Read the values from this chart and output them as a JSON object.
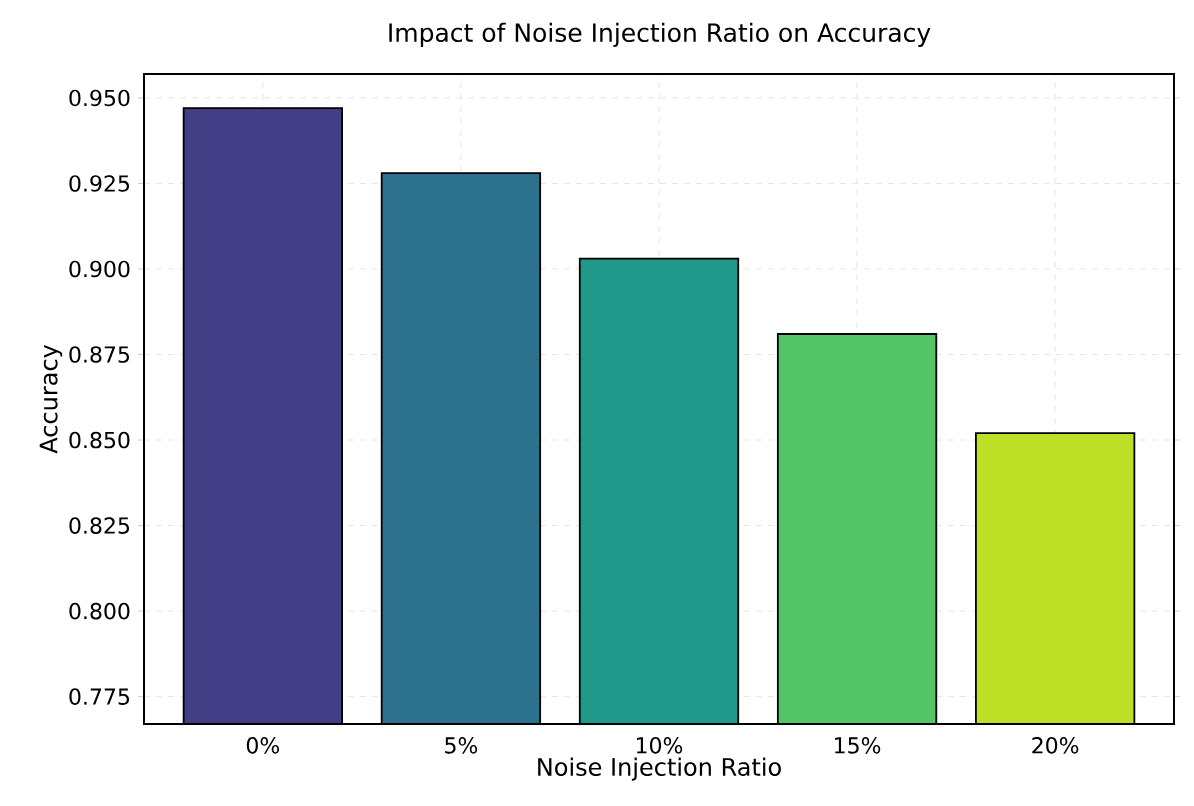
{
  "chart_data": {
    "type": "bar",
    "title": "Impact of Noise Injection Ratio on Accuracy",
    "xlabel": "Noise Injection Ratio",
    "ylabel": "Accuracy",
    "categories": [
      "0%",
      "5%",
      "10%",
      "15%",
      "20%"
    ],
    "values": [
      0.947,
      0.928,
      0.903,
      0.881,
      0.852
    ],
    "colors": [
      "#433e85",
      "#2c728e",
      "#21998a",
      "#52c569",
      "#bddf26"
    ],
    "ylim": [
      0.767,
      0.957
    ],
    "yticks": [
      0.775,
      {
        "value": 0.8,
        "label": "0.800"
      },
      0.825,
      {
        "value": 0.85,
        "label": "0.850"
      },
      0.875,
      {
        "value": 0.9,
        "label": "0.900"
      },
      0.925,
      {
        "value": 0.95,
        "label": "0.950"
      }
    ],
    "grid": true
  }
}
